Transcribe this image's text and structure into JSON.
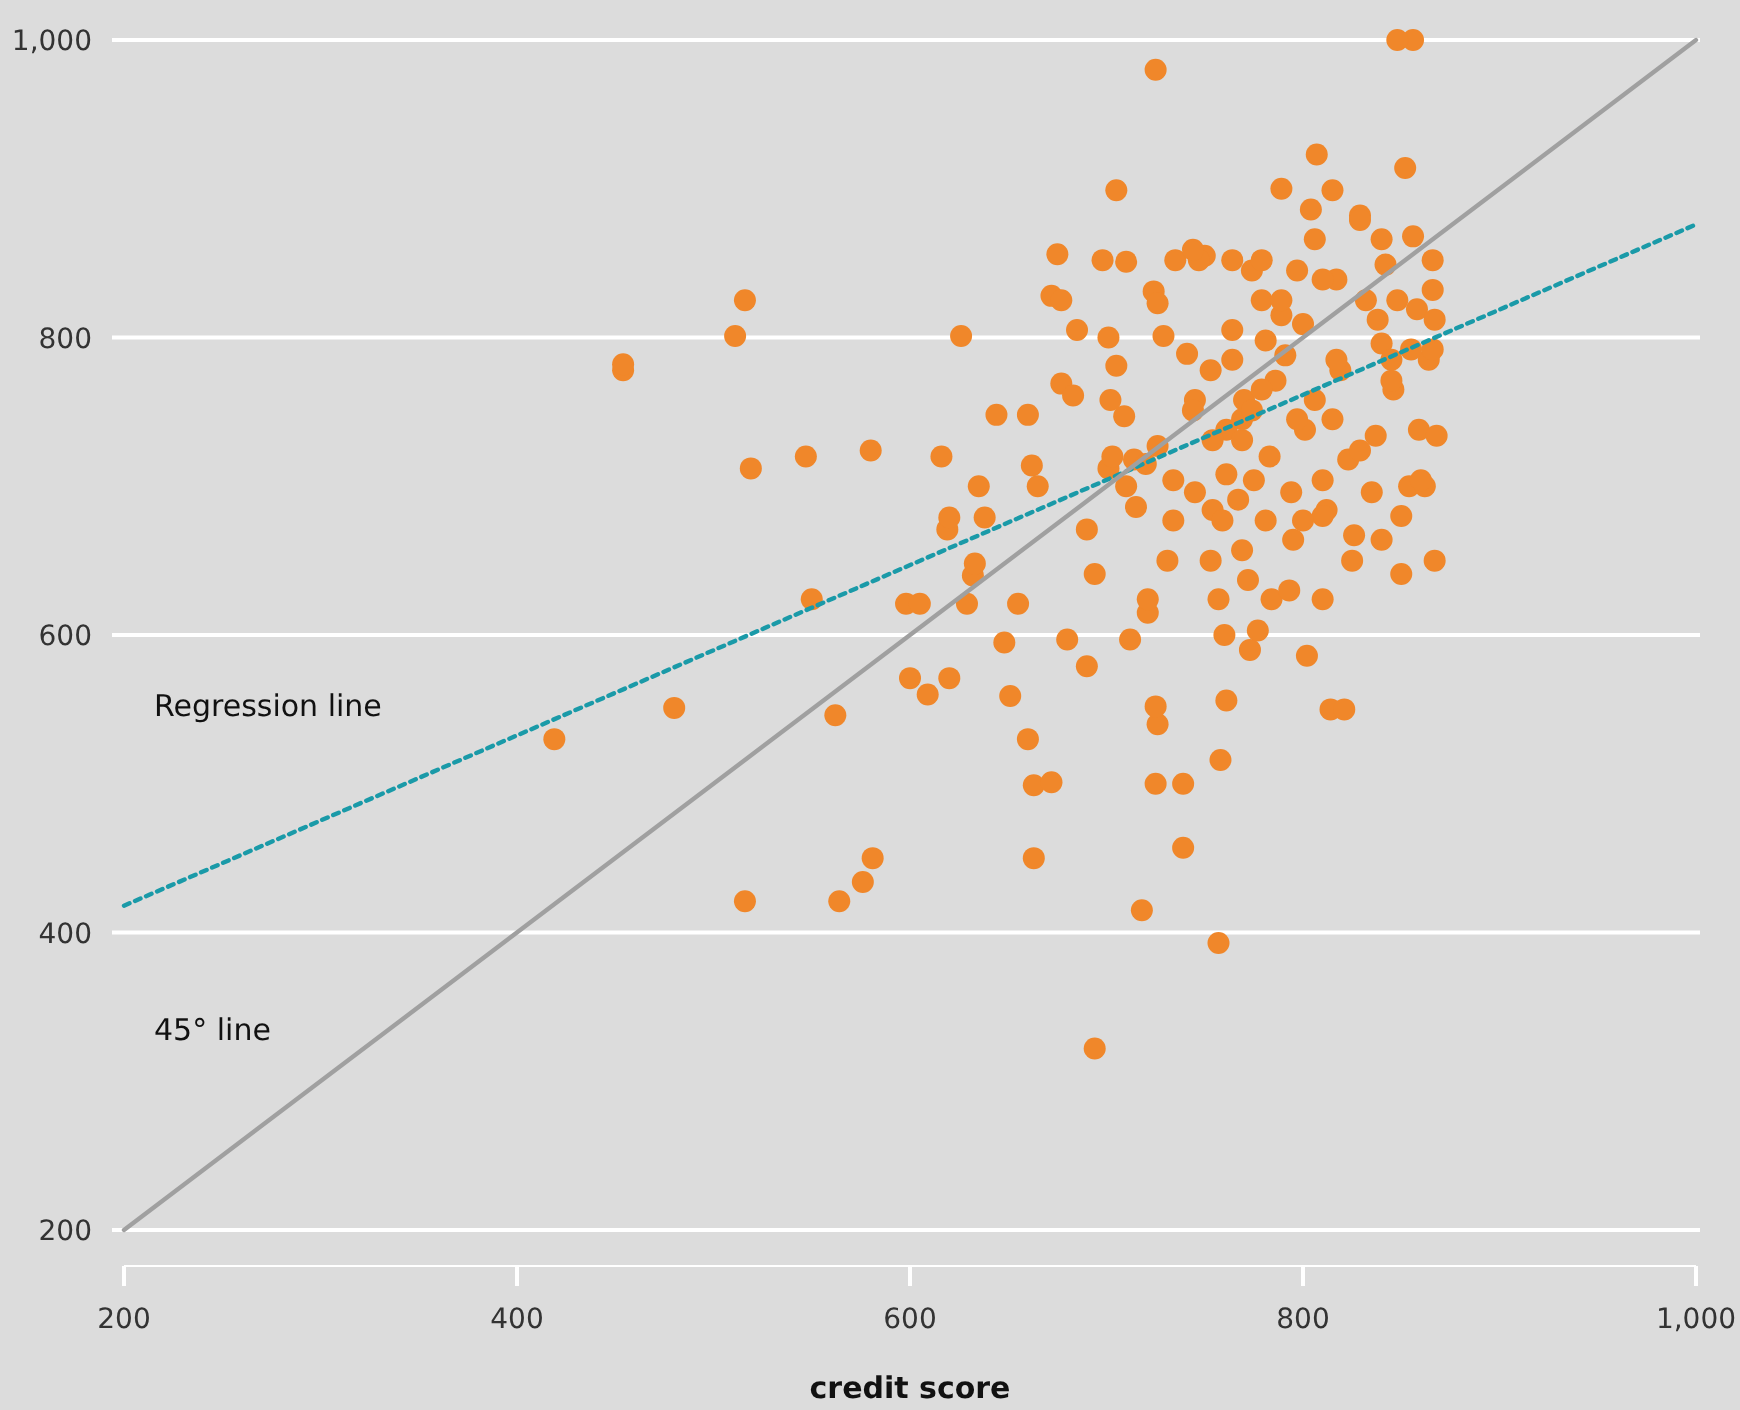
{
  "chart_data": {
    "type": "scatter",
    "xlabel": "credit score",
    "xlim": [
      200,
      1000
    ],
    "ylim": [
      200,
      1000
    ],
    "xticks": [
      200,
      400,
      600,
      800,
      {
        "value": 1000,
        "label": "1,000"
      }
    ],
    "yticks": [
      200,
      400,
      600,
      800,
      {
        "value": 1000,
        "label": "1,000"
      }
    ],
    "grid": "y",
    "legend": false,
    "series": [
      {
        "color": "#f0872a",
        "marker": "circle",
        "x": [
          419,
          454,
          454,
          480,
          511,
          516,
          519,
          516,
          547,
          550,
          562,
          564,
          576,
          581,
          580,
          598,
          605,
          600,
          609,
          620,
          616,
          619,
          620,
          626,
          629,
          632,
          635,
          633,
          638,
          648,
          644,
          651,
          655,
          660,
          660,
          663,
          663,
          662,
          665,
          672,
          672,
          675,
          680,
          677,
          677,
          683,
          685,
          690,
          690,
          694,
          694,
          698,
          702,
          701,
          701,
          705,
          705,
          703,
          710,
          709,
          714,
          710,
          712,
          718,
          715,
          721,
          721,
          724,
          725,
          725,
          720,
          726,
          725,
          731,
          726,
          729,
          726,
          735,
          741,
          739,
          739,
          745,
          750,
          747,
          753,
          754,
          757,
          760,
          761,
          758,
          757,
          761,
          761,
          764,
          764,
          767,
          769,
          770,
          772,
          773,
          775,
          777,
          779,
          781,
          783,
          784,
          786,
          789,
          791,
          794,
          795,
          793,
          797,
          800,
          801,
          802,
          806,
          807,
          804,
          806,
          810,
          810,
          812,
          814,
          815,
          817,
          819,
          821,
          823,
          825,
          826,
          829,
          832,
          835,
          837,
          840,
          842,
          846,
          856,
          848,
          850,
          852,
          854,
          856,
          858,
          859,
          862,
          864,
          866,
          867,
          868,
          867,
          866,
          866,
          744,
          769,
          781,
          789,
          810,
          817,
          838,
          848,
          855,
          845,
          829,
          815,
          797,
          779,
          769,
          754,
          744,
          753,
          789,
          810,
          840,
          850,
          860,
          774,
          759,
          800,
          745,
          734,
          734,
          845,
          840,
          829,
          774,
          764,
          779
        ],
        "values": [
          530,
          778,
          782,
          551,
          801,
          825,
          712,
          421,
          720,
          624,
          546,
          421,
          434,
          450,
          724,
          621,
          621,
          571,
          560,
          571,
          720,
          671,
          679,
          801,
          621,
          640,
          700,
          648,
          679,
          595,
          748,
          559,
          621,
          748,
          530,
          499,
          450,
          714,
          700,
          828,
          501,
          856,
          597,
          825,
          769,
          761,
          805,
          671,
          579,
          322,
          641,
          852,
          758,
          712,
          800,
          781,
          899,
          720,
          851,
          747,
          718,
          700,
          597,
          415,
          686,
          615,
          624,
          831,
          980,
          500,
          715,
          540,
          552,
          650,
          727,
          801,
          823,
          852,
          789,
          500,
          457,
          758,
          855,
          852,
          650,
          684,
          624,
          600,
          556,
          516,
          393,
          708,
          738,
          785,
          805,
          691,
          657,
          758,
          637,
          590,
          704,
          603,
          825,
          677,
          720,
          624,
          771,
          900,
          788,
          696,
          664,
          630,
          845,
          809,
          738,
          586,
          866,
          923,
          886,
          758,
          704,
          624,
          684,
          550,
          899,
          839,
          778,
          550,
          718,
          650,
          667,
          882,
          825,
          696,
          734,
          796,
          849,
          765,
          1000,
          1000,
          641,
          914,
          700,
          868,
          819,
          738,
          700,
          785,
          852,
          650,
          734,
          812,
          832,
          792,
          859,
          731,
          798,
          815,
          839,
          785,
          812,
          825,
          792,
          771,
          724,
          745,
          745,
          765,
          745,
          731,
          751,
          778,
          825,
          680,
          664,
          680,
          704,
          751,
          677,
          677,
          696,
          704,
          677,
          785,
          866,
          879,
          845,
          852,
          852
        ]
      },
      {
        "type": "line",
        "name": "Regression line",
        "color": "#1a9aa8",
        "line_style": "dotted",
        "marker": "none",
        "x": [
          200,
          1000
        ],
        "values": [
          418,
          876
        ]
      },
      {
        "type": "line",
        "name": "45° line",
        "color": "#a0a0a0",
        "line_style": "solid",
        "marker": "none",
        "x": [
          200,
          1000
        ],
        "values": [
          200,
          1000
        ]
      }
    ]
  }
}
